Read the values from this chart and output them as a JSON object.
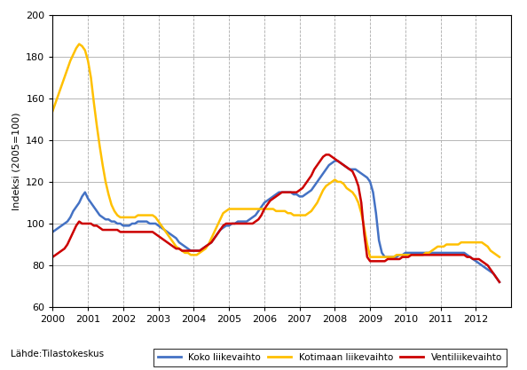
{
  "title": "",
  "ylabel": "Indeksi (2005=100)",
  "source_label": "Lähde:Tilastokeskus",
  "legend_labels": [
    "Koko liikevaihto",
    "Kotimaan liikevaihto",
    "Ventiliikevaihto"
  ],
  "colors": [
    "#4472c4",
    "#ffc000",
    "#cc0000"
  ],
  "ylim": [
    60,
    200
  ],
  "yticks": [
    60,
    80,
    100,
    120,
    140,
    160,
    180,
    200
  ],
  "xlim": [
    2000.0,
    2013.0
  ],
  "year_ticks": [
    2000,
    2001,
    2002,
    2003,
    2004,
    2005,
    2006,
    2007,
    2008,
    2009,
    2010,
    2011,
    2012
  ],
  "koko": [
    96,
    97,
    98,
    99,
    100,
    101,
    103,
    106,
    108,
    110,
    113,
    115,
    112,
    110,
    108,
    106,
    104,
    103,
    102,
    102,
    101,
    101,
    100,
    100,
    99,
    99,
    99,
    100,
    100,
    101,
    101,
    101,
    101,
    100,
    100,
    100,
    99,
    98,
    97,
    96,
    95,
    94,
    93,
    91,
    90,
    89,
    88,
    87,
    87,
    87,
    87,
    88,
    89,
    90,
    91,
    93,
    95,
    97,
    98,
    99,
    99,
    100,
    100,
    101,
    101,
    101,
    101,
    102,
    103,
    104,
    106,
    108,
    110,
    111,
    112,
    113,
    114,
    115,
    115,
    115,
    115,
    115,
    114,
    114,
    113,
    113,
    114,
    115,
    116,
    118,
    120,
    122,
    124,
    126,
    128,
    129,
    130,
    130,
    129,
    128,
    127,
    126,
    126,
    126,
    125,
    124,
    123,
    122,
    120,
    115,
    105,
    92,
    86,
    84,
    84,
    84,
    84,
    84,
    85,
    85,
    86,
    86,
    86,
    86,
    86,
    86,
    86,
    86,
    86,
    86,
    86,
    86,
    86,
    86,
    86,
    86,
    86,
    86,
    86,
    86,
    86,
    85,
    84,
    83,
    82,
    81,
    80,
    79,
    78,
    77,
    76,
    74,
    72
  ],
  "kotimaan": [
    154,
    158,
    162,
    166,
    170,
    174,
    178,
    181,
    184,
    186,
    185,
    183,
    178,
    170,
    158,
    147,
    137,
    128,
    120,
    114,
    109,
    106,
    104,
    103,
    103,
    103,
    103,
    103,
    103,
    104,
    104,
    104,
    104,
    104,
    104,
    103,
    101,
    99,
    97,
    95,
    93,
    91,
    89,
    88,
    87,
    86,
    86,
    85,
    85,
    85,
    86,
    87,
    88,
    90,
    93,
    96,
    99,
    102,
    105,
    106,
    107,
    107,
    107,
    107,
    107,
    107,
    107,
    107,
    107,
    107,
    107,
    107,
    107,
    107,
    107,
    107,
    106,
    106,
    106,
    106,
    105,
    105,
    104,
    104,
    104,
    104,
    104,
    105,
    106,
    108,
    110,
    113,
    116,
    118,
    119,
    120,
    121,
    120,
    120,
    119,
    117,
    116,
    115,
    113,
    110,
    105,
    98,
    90,
    84,
    84,
    84,
    84,
    84,
    84,
    84,
    84,
    84,
    85,
    85,
    85,
    85,
    85,
    85,
    85,
    85,
    85,
    85,
    86,
    86,
    87,
    88,
    89,
    89,
    89,
    90,
    90,
    90,
    90,
    90,
    91,
    91,
    91,
    91,
    91,
    91,
    91,
    91,
    90,
    89,
    87,
    86,
    85,
    84
  ],
  "vienti": [
    84,
    85,
    86,
    87,
    88,
    90,
    93,
    96,
    99,
    101,
    100,
    100,
    100,
    100,
    99,
    99,
    98,
    97,
    97,
    97,
    97,
    97,
    97,
    96,
    96,
    96,
    96,
    96,
    96,
    96,
    96,
    96,
    96,
    96,
    96,
    95,
    94,
    93,
    92,
    91,
    90,
    89,
    88,
    88,
    87,
    87,
    87,
    87,
    87,
    87,
    87,
    88,
    89,
    90,
    91,
    93,
    95,
    97,
    99,
    100,
    100,
    100,
    100,
    100,
    100,
    100,
    100,
    100,
    100,
    101,
    102,
    104,
    107,
    109,
    111,
    112,
    113,
    114,
    115,
    115,
    115,
    115,
    115,
    115,
    116,
    117,
    119,
    121,
    123,
    126,
    128,
    130,
    132,
    133,
    133,
    132,
    131,
    130,
    129,
    128,
    127,
    126,
    125,
    122,
    118,
    110,
    95,
    84,
    82,
    82,
    82,
    82,
    82,
    82,
    83,
    83,
    83,
    83,
    83,
    84,
    84,
    84,
    85,
    85,
    85,
    85,
    85,
    85,
    85,
    85,
    85,
    85,
    85,
    85,
    85,
    85,
    85,
    85,
    85,
    85,
    85,
    84,
    84,
    83,
    83,
    83,
    82,
    81,
    80,
    78,
    76,
    74,
    72
  ]
}
